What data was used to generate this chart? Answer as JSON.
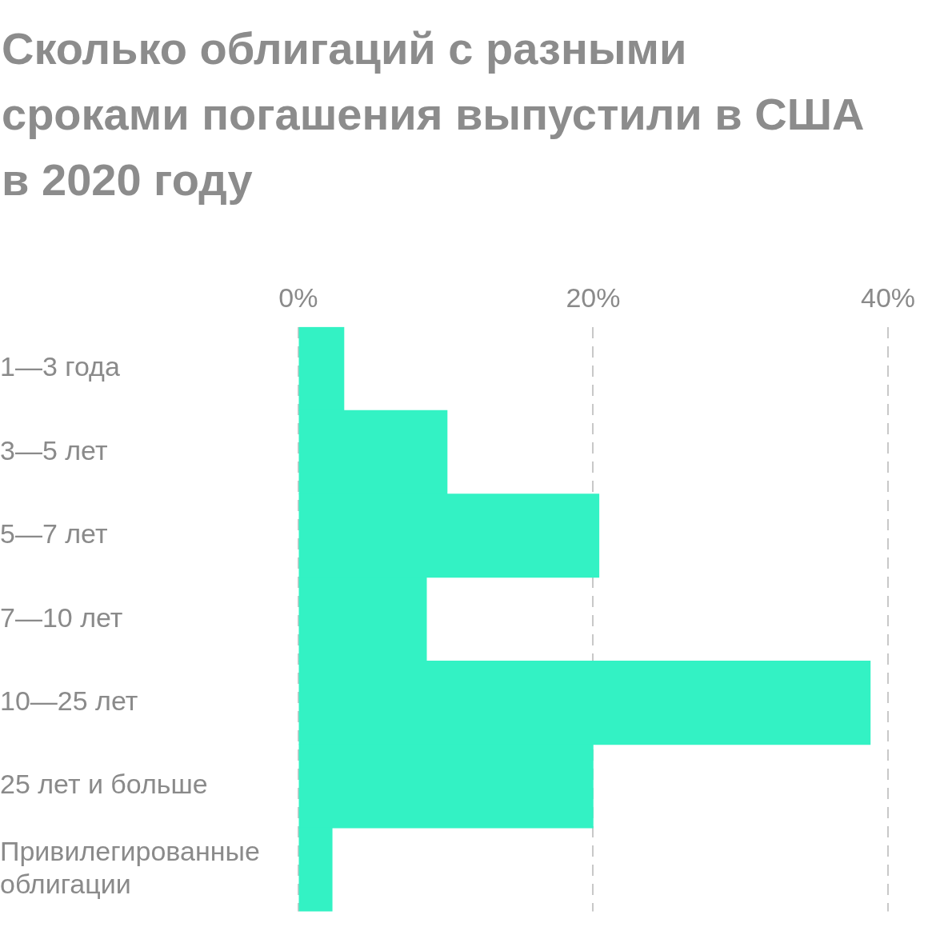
{
  "chart_data": {
    "type": "bar",
    "orientation": "horizontal",
    "title": "Сколько облигаций с разными сроками погашения выпустили в США в 2020 году",
    "categories": [
      "1—3 года",
      "3—5 лет",
      "5—7 лет",
      "7—10 лет",
      "10—25 лет",
      "25 лет и больше",
      "Привилегированные облигации"
    ],
    "values": [
      3.1,
      10.1,
      20.4,
      8.7,
      38.8,
      20.0,
      2.3
    ],
    "color": "#33f2c4",
    "xlim": [
      0,
      40
    ],
    "xticks": [
      {
        "value": 0,
        "label": "0%"
      },
      {
        "value": 20,
        "label": "20%"
      },
      {
        "value": 40,
        "label": "40%"
      }
    ],
    "grid": "x"
  }
}
